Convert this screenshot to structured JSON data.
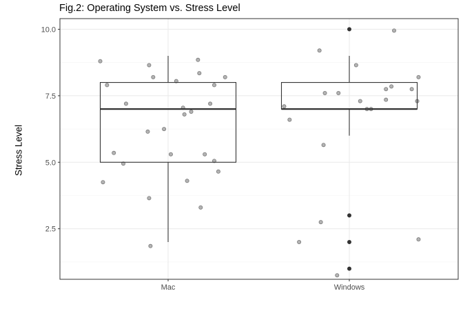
{
  "chart_data": {
    "type": "boxplot",
    "title": "Fig.2: Operating System vs. Stress Level",
    "xlabel": "",
    "ylabel": "Stress Level",
    "categories": [
      "Mac",
      "Windows"
    ],
    "y_ticks": [
      2.5,
      5.0,
      7.5,
      10.0
    ],
    "y_tick_labels": [
      "2.5",
      "5.0",
      "7.5",
      "10.0"
    ],
    "ylim": [
      0.6,
      10.4
    ],
    "grid": true,
    "theme": "black-and-white",
    "boxes": [
      {
        "category": "Mac",
        "q1": 5,
        "median": 7,
        "q3": 8,
        "whisker_low": 2,
        "whisker_high": 9,
        "outliers": []
      },
      {
        "category": "Windows",
        "q1": 7,
        "median": 7,
        "q3": 8,
        "whisker_low": 6,
        "whisker_high": 9,
        "outliers": [
          10,
          3,
          2,
          1
        ]
      }
    ],
    "jitter_points": [
      {
        "category": "Mac",
        "points": [
          {
            "dx": -0.5,
            "y": 8.8
          },
          {
            "dx": -0.45,
            "y": 7.9
          },
          {
            "dx": -0.4,
            "y": 5.35
          },
          {
            "dx": -0.48,
            "y": 4.25
          },
          {
            "dx": -0.33,
            "y": 4.95
          },
          {
            "dx": -0.31,
            "y": 7.2
          },
          {
            "dx": -0.14,
            "y": 8.65
          },
          {
            "dx": -0.11,
            "y": 8.2
          },
          {
            "dx": -0.15,
            "y": 6.15
          },
          {
            "dx": -0.14,
            "y": 3.65
          },
          {
            "dx": -0.13,
            "y": 1.85
          },
          {
            "dx": -0.03,
            "y": 6.25
          },
          {
            "dx": 0.02,
            "y": 5.3
          },
          {
            "dx": 0.06,
            "y": 8.05
          },
          {
            "dx": 0.11,
            "y": 7.05
          },
          {
            "dx": 0.12,
            "y": 6.8
          },
          {
            "dx": 0.17,
            "y": 6.9
          },
          {
            "dx": 0.14,
            "y": 4.3
          },
          {
            "dx": 0.22,
            "y": 8.85
          },
          {
            "dx": 0.23,
            "y": 8.35
          },
          {
            "dx": 0.24,
            "y": 3.3
          },
          {
            "dx": 0.27,
            "y": 5.3
          },
          {
            "dx": 0.31,
            "y": 7.2
          },
          {
            "dx": 0.34,
            "y": 7.9
          },
          {
            "dx": 0.34,
            "y": 5.05
          },
          {
            "dx": 0.37,
            "y": 4.65
          },
          {
            "dx": 0.42,
            "y": 8.2
          }
        ]
      },
      {
        "category": "Windows",
        "points": [
          {
            "dx": -0.48,
            "y": 7.1
          },
          {
            "dx": -0.37,
            "y": 2.0
          },
          {
            "dx": -0.44,
            "y": 6.6
          },
          {
            "dx": -0.22,
            "y": 9.2
          },
          {
            "dx": -0.18,
            "y": 7.6
          },
          {
            "dx": -0.19,
            "y": 5.65
          },
          {
            "dx": -0.21,
            "y": 2.75
          },
          {
            "dx": -0.08,
            "y": 7.6
          },
          {
            "dx": -0.09,
            "y": 0.75
          },
          {
            "dx": 0.05,
            "y": 8.65
          },
          {
            "dx": 0.08,
            "y": 7.3
          },
          {
            "dx": 0.13,
            "y": 7.0
          },
          {
            "dx": 0.16,
            "y": 7.0
          },
          {
            "dx": 0.27,
            "y": 7.75
          },
          {
            "dx": 0.27,
            "y": 7.35
          },
          {
            "dx": 0.31,
            "y": 7.85
          },
          {
            "dx": 0.33,
            "y": 9.95
          },
          {
            "dx": 0.46,
            "y": 7.75
          },
          {
            "dx": 0.5,
            "y": 7.3
          },
          {
            "dx": 0.51,
            "y": 8.2
          },
          {
            "dx": 0.51,
            "y": 2.1
          }
        ]
      }
    ],
    "colors": {
      "box_stroke": "#333333",
      "point_fill": "#a6a6a6",
      "point_stroke": "#7a7a7a",
      "outlier": "#333333",
      "grid_major": "#ebebeb",
      "grid_minor": "#f4f4f4",
      "panel_border": "#333333",
      "tick_text": "#4d4d4d"
    }
  }
}
